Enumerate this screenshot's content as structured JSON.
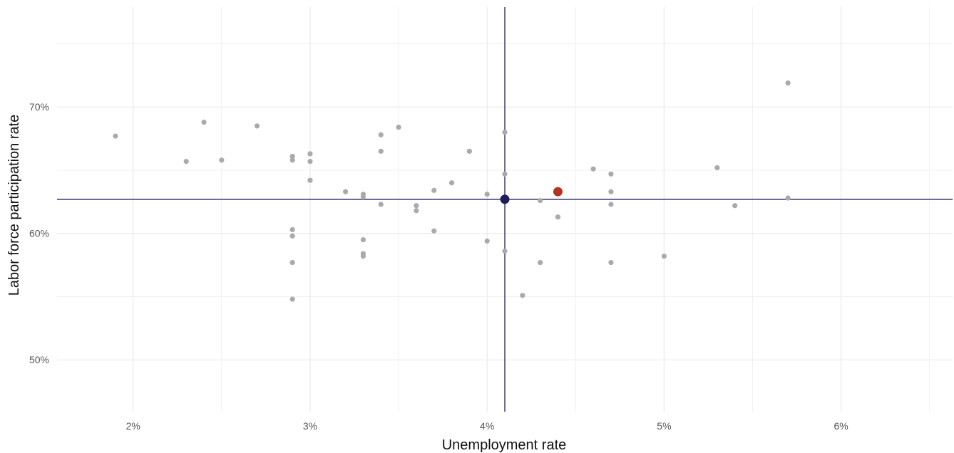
{
  "chart_data": {
    "type": "scatter",
    "title": "",
    "xlabel": "Unemployment rate",
    "ylabel": "Labor force participation rate",
    "xlim": [
      1.57,
      6.63
    ],
    "ylim": [
      45.9,
      77.9
    ],
    "x_ticks": [
      2,
      3,
      4,
      5,
      6
    ],
    "x_tick_labels": [
      "2%",
      "3%",
      "4%",
      "5%",
      "6%"
    ],
    "y_ticks": [
      50,
      60,
      70
    ],
    "y_tick_labels": [
      "50%",
      "60%",
      "70%"
    ],
    "grid": true,
    "reference_lines": {
      "x": 4.1,
      "y": 62.7,
      "color": "#1f1d5c"
    },
    "colors": {
      "points": "#aaaaaa",
      "highlight_avg": "#1f1d5c",
      "highlight_point": "#b53420",
      "grid": "#ebebeb"
    },
    "points": [
      {
        "x": 1.9,
        "y": 67.7
      },
      {
        "x": 2.3,
        "y": 65.7
      },
      {
        "x": 2.4,
        "y": 68.8
      },
      {
        "x": 2.5,
        "y": 65.8
      },
      {
        "x": 2.7,
        "y": 68.5
      },
      {
        "x": 2.9,
        "y": 66.1
      },
      {
        "x": 2.9,
        "y": 65.8
      },
      {
        "x": 2.9,
        "y": 60.3
      },
      {
        "x": 2.9,
        "y": 59.8
      },
      {
        "x": 2.9,
        "y": 57.7
      },
      {
        "x": 2.9,
        "y": 54.8
      },
      {
        "x": 3.0,
        "y": 66.3
      },
      {
        "x": 3.0,
        "y": 65.7
      },
      {
        "x": 3.0,
        "y": 64.2
      },
      {
        "x": 3.2,
        "y": 63.3
      },
      {
        "x": 3.3,
        "y": 63.1
      },
      {
        "x": 3.3,
        "y": 62.9
      },
      {
        "x": 3.3,
        "y": 59.5
      },
      {
        "x": 3.3,
        "y": 58.4
      },
      {
        "x": 3.3,
        "y": 58.2
      },
      {
        "x": 3.4,
        "y": 67.8
      },
      {
        "x": 3.4,
        "y": 66.5
      },
      {
        "x": 3.4,
        "y": 62.3
      },
      {
        "x": 3.5,
        "y": 68.4
      },
      {
        "x": 3.6,
        "y": 62.2
      },
      {
        "x": 3.6,
        "y": 61.8
      },
      {
        "x": 3.7,
        "y": 63.4
      },
      {
        "x": 3.7,
        "y": 60.2
      },
      {
        "x": 3.8,
        "y": 64.0
      },
      {
        "x": 3.9,
        "y": 66.5
      },
      {
        "x": 4.0,
        "y": 63.1
      },
      {
        "x": 4.0,
        "y": 59.4
      },
      {
        "x": 4.1,
        "y": 68.0
      },
      {
        "x": 4.1,
        "y": 64.7
      },
      {
        "x": 4.1,
        "y": 58.6
      },
      {
        "x": 4.2,
        "y": 55.1
      },
      {
        "x": 4.3,
        "y": 62.6
      },
      {
        "x": 4.3,
        "y": 57.7
      },
      {
        "x": 4.4,
        "y": 61.3
      },
      {
        "x": 4.6,
        "y": 65.1
      },
      {
        "x": 4.7,
        "y": 64.7
      },
      {
        "x": 4.7,
        "y": 63.3
      },
      {
        "x": 4.7,
        "y": 62.3
      },
      {
        "x": 4.7,
        "y": 57.7
      },
      {
        "x": 5.0,
        "y": 58.2
      },
      {
        "x": 5.3,
        "y": 65.2
      },
      {
        "x": 5.4,
        "y": 62.2
      },
      {
        "x": 5.7,
        "y": 71.9
      },
      {
        "x": 5.7,
        "y": 62.8
      }
    ],
    "highlights": [
      {
        "x": 4.1,
        "y": 62.7,
        "color": "#1f1d5c"
      },
      {
        "x": 4.4,
        "y": 63.3,
        "color": "#b53420"
      }
    ]
  }
}
